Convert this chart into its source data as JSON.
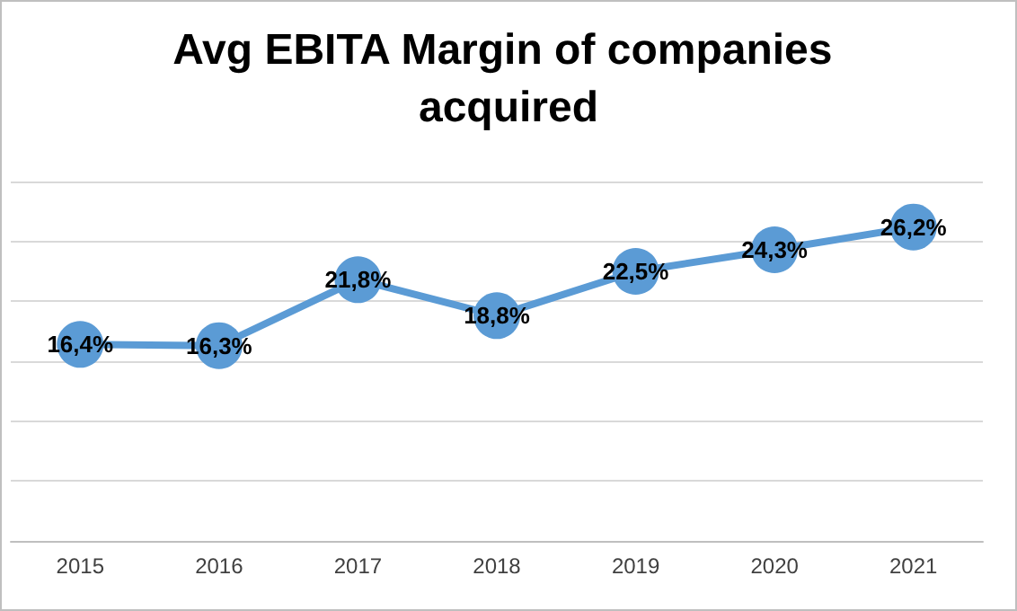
{
  "chart_data": {
    "type": "line",
    "title": "Avg EBITA Margin of companies acquired",
    "categories": [
      "2015",
      "2016",
      "2017",
      "2018",
      "2019",
      "2020",
      "2021"
    ],
    "values": [
      16.4,
      16.3,
      21.8,
      18.8,
      22.5,
      24.3,
      26.2
    ],
    "value_labels": [
      "16,4%",
      "16,3%",
      "21,8%",
      "18,8%",
      "22,5%",
      "24,3%",
      "26,2%"
    ],
    "color": "#5b9bd5",
    "marker": "circle",
    "line_style": "solid",
    "ylim": [
      0,
      30
    ],
    "yticks": [
      {
        "value": 0,
        "label": null
      },
      {
        "value": 5,
        "label": null
      },
      {
        "value": 10,
        "label": null
      },
      {
        "value": 15,
        "label": null
      },
      {
        "value": 20,
        "label": null
      },
      {
        "value": 25,
        "label": null
      },
      {
        "value": 30,
        "label": null
      }
    ],
    "grid": "y",
    "tick_labels": "x"
  }
}
